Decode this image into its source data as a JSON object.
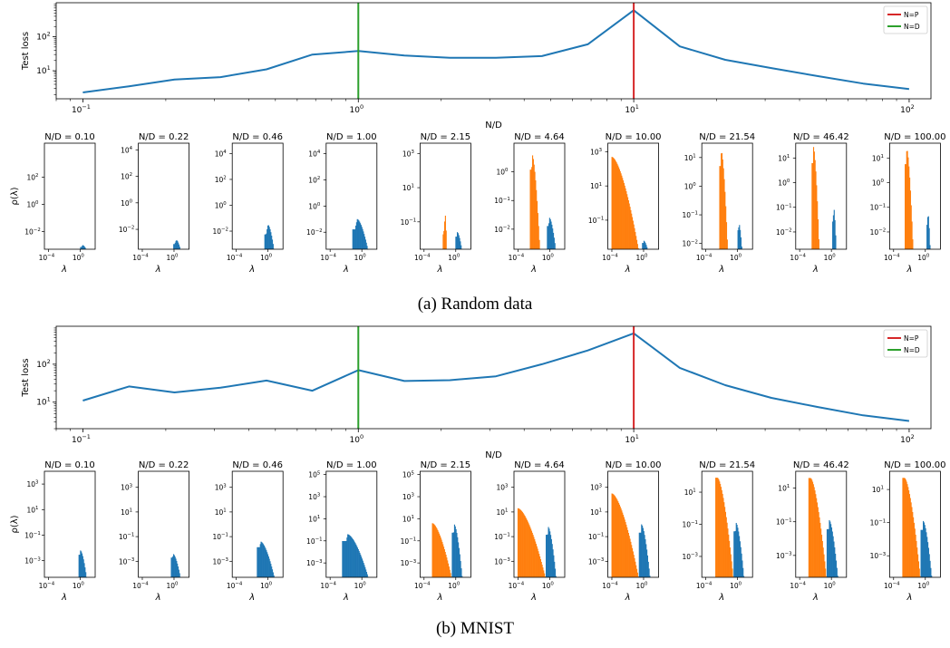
{
  "figure": {
    "caption_a": "(a) Random data",
    "caption_b": "(b) MNIST"
  },
  "colors": {
    "loss_line": "#1f77b4",
    "np_line": "#d62728",
    "nd_line": "#2ca02c",
    "hist_blue": "#1f77b4",
    "hist_orange": "#ff7f0e"
  },
  "chart_data": [
    {
      "type": "line",
      "panel": "a",
      "xlabel": "N/D",
      "ylabel": "Test loss",
      "x_scale": "log",
      "y_scale": "log",
      "xlim": [
        0.08,
        120
      ],
      "ylim": [
        1.5,
        1000
      ],
      "x_ticks": [
        {
          "v": 0.1,
          "base": "10",
          "exp": "−1"
        },
        {
          "v": 1,
          "base": "10",
          "exp": "0"
        },
        {
          "v": 10,
          "base": "10",
          "exp": "1"
        },
        {
          "v": 100,
          "base": "10",
          "exp": "2"
        }
      ],
      "y_ticks": [
        {
          "v": 10,
          "base": "10",
          "exp": "1"
        },
        {
          "v": 100,
          "base": "10",
          "exp": "2"
        }
      ],
      "x": [
        0.1,
        0.147,
        0.215,
        0.316,
        0.464,
        0.681,
        1.0,
        1.47,
        2.15,
        3.16,
        4.64,
        6.81,
        10.0,
        14.7,
        21.5,
        31.6,
        46.4,
        68.1,
        100.0
      ],
      "series": [
        {
          "values": [
            2.3,
            3.5,
            5.5,
            6.5,
            11,
            30,
            38,
            28,
            24,
            24,
            27,
            60,
            600,
            52,
            21,
            12,
            7,
            4.2,
            2.9
          ]
        }
      ],
      "vlines": [
        {
          "x": 10,
          "name": "N=P",
          "color": "#d62728"
        },
        {
          "x": 1,
          "name": "N=D",
          "color": "#2ca02c"
        }
      ],
      "legend": [
        "N=P",
        "N=D"
      ],
      "legend_position": "top-right",
      "grid": false
    },
    {
      "type": "histogram",
      "panel": "a",
      "xlabel": "λ",
      "ylabel": "ρ(λ)",
      "x_scale": "log",
      "y_scale": "log",
      "subplots": [
        {
          "title": "N/D = 0.10",
          "yrange": [
            -3.3,
            4.5
          ],
          "yticks": [
            -2,
            0,
            2
          ],
          "blue": {
            "a": 0.0,
            "b": 0.7,
            "peak": -3.0,
            "frac": 0.4,
            "floor": -3.3
          },
          "orange": null
        },
        {
          "title": "N/D = 0.22",
          "yrange": [
            -3.5,
            4.5
          ],
          "yticks": [
            -2,
            0,
            2,
            4
          ],
          "blue": {
            "a": -0.1,
            "b": 0.75,
            "peak": -2.8,
            "frac": 0.4,
            "floor": -3.5
          },
          "orange": null
        },
        {
          "title": "N/D = 0.46",
          "yrange": [
            -3.4,
            4.8
          ],
          "yticks": [
            -2,
            0,
            2,
            4
          ],
          "blue": {
            "a": -0.45,
            "b": 0.7,
            "peak": -1.5,
            "frac": 0.35,
            "floor": -3.4
          },
          "orange": null
        },
        {
          "title": "N/D = 1.00",
          "yrange": [
            -3.3,
            4.8
          ],
          "yticks": [
            -2,
            0,
            2,
            4
          ],
          "blue": {
            "a": -1.2,
            "b": 0.7,
            "peak": -1.0,
            "frac": 0.3,
            "floor": -3.3
          },
          "orange": null
        },
        {
          "title": "N/D = 2.15",
          "yrange": [
            -2.6,
            3.6
          ],
          "yticks": [
            -1,
            1,
            3
          ],
          "blue": {
            "a": -0.05,
            "b": 0.7,
            "peak": -1.6,
            "frac": 0.25,
            "floor": -2.6
          },
          "orange": {
            "a": -1.65,
            "b": -1.2,
            "peak": -0.6,
            "frac": 0.6,
            "floor": -2.6
          }
        },
        {
          "title": "N/D = 4.64",
          "yrange": [
            -2.7,
            1.0
          ],
          "yticks": [
            -2,
            -1,
            0
          ],
          "blue": {
            "a": -0.35,
            "b": 0.7,
            "peak": -1.6,
            "frac": 0.25,
            "floor": -2.7
          },
          "orange": {
            "a": -2.5,
            "b": -1.3,
            "peak": 0.6,
            "frac": 0.2,
            "floor": -2.7
          }
        },
        {
          "title": "N/D = 10.00",
          "yrange": [
            -2.7,
            3.5
          ],
          "yticks": [
            -1,
            1,
            3
          ],
          "blue": {
            "a": -0.2,
            "b": 0.45,
            "peak": -2.2,
            "frac": 0.25,
            "floor": -2.7
          },
          "orange": {
            "a": -4.05,
            "b": -0.7,
            "peak": 2.7,
            "frac": 0.0,
            "floor": -2.7
          }
        },
        {
          "title": "N/D = 21.54",
          "yrange": [
            -2.2,
            1.5
          ],
          "yticks": [
            -2,
            -1,
            0,
            1
          ],
          "blue": {
            "a": 0.0,
            "b": 0.5,
            "peak": -1.3,
            "frac": 0.25,
            "floor": -2.2
          },
          "orange": {
            "a": -2.3,
            "b": -1.3,
            "peak": 1.25,
            "frac": 0.2,
            "floor": -2.2
          }
        },
        {
          "title": "N/D = 46.42",
          "yrange": [
            -2.7,
            1.6
          ],
          "yticks": [
            -2,
            -1,
            0,
            1
          ],
          "blue": {
            "a": 0.1,
            "b": 0.55,
            "peak": -1.0,
            "frac": 0.3,
            "floor": -2.7
          },
          "orange": {
            "a": -2.5,
            "b": -1.6,
            "peak": 1.45,
            "frac": 0.2,
            "floor": -2.7
          }
        },
        {
          "title": "N/D = 100.00",
          "yrange": [
            -2.7,
            1.6
          ],
          "yticks": [
            -2,
            -1,
            0,
            1
          ],
          "blue": {
            "a": 0.15,
            "b": 0.55,
            "peak": -1.2,
            "frac": 0.3,
            "floor": -2.7
          },
          "orange": {
            "a": -2.6,
            "b": -1.6,
            "peak": 1.4,
            "frac": 0.2,
            "floor": -2.7
          }
        }
      ]
    },
    {
      "type": "line",
      "panel": "b",
      "xlabel": "N/D",
      "ylabel": "Test loss",
      "x_scale": "log",
      "y_scale": "log",
      "xlim": [
        0.08,
        120
      ],
      "ylim": [
        2,
        1000
      ],
      "x_ticks": [
        {
          "v": 0.1,
          "base": "10",
          "exp": "−1"
        },
        {
          "v": 1,
          "base": "10",
          "exp": "0"
        },
        {
          "v": 10,
          "base": "10",
          "exp": "1"
        },
        {
          "v": 100,
          "base": "10",
          "exp": "2"
        }
      ],
      "y_ticks": [
        {
          "v": 10,
          "base": "10",
          "exp": "1"
        },
        {
          "v": 100,
          "base": "10",
          "exp": "2"
        }
      ],
      "x": [
        0.1,
        0.147,
        0.215,
        0.316,
        0.464,
        0.681,
        1.0,
        1.47,
        2.15,
        3.16,
        4.64,
        6.81,
        10.0,
        14.7,
        21.5,
        31.6,
        46.4,
        68.1,
        100.0
      ],
      "series": [
        {
          "values": [
            11,
            26,
            18,
            24,
            37,
            20,
            70,
            36,
            38,
            48,
            100,
            230,
            650,
            80,
            28,
            13,
            7.5,
            4.5,
            3.2
          ]
        }
      ],
      "vlines": [
        {
          "x": 10,
          "name": "N=P",
          "color": "#d62728"
        },
        {
          "x": 1,
          "name": "N=D",
          "color": "#2ca02c"
        }
      ],
      "legend": [
        "N=P",
        "N=D"
      ],
      "legend_position": "top-right",
      "grid": false
    },
    {
      "type": "histogram",
      "panel": "b",
      "xlabel": "λ",
      "ylabel": "ρ(λ)",
      "x_scale": "log",
      "y_scale": "log",
      "subplots": [
        {
          "title": "N/D = 0.10",
          "yrange": [
            -4.3,
            4.0
          ],
          "yticks": [
            -3,
            -1,
            1,
            3
          ],
          "blue": {
            "a": -0.2,
            "b": 0.75,
            "peak": -2.2,
            "frac": 0.2,
            "floor": -4.3
          },
          "orange": null
        },
        {
          "title": "N/D = 0.22",
          "yrange": [
            -4.3,
            4.3
          ],
          "yticks": [
            -3,
            -1,
            1,
            3
          ],
          "blue": {
            "a": -0.4,
            "b": 0.75,
            "peak": -2.4,
            "frac": 0.2,
            "floor": -4.3
          },
          "orange": null
        },
        {
          "title": "N/D = 0.46",
          "yrange": [
            -4.3,
            4.3
          ],
          "yticks": [
            -3,
            -1,
            1,
            3
          ],
          "blue": {
            "a": -1.4,
            "b": 0.75,
            "peak": -1.4,
            "frac": 0.2,
            "floor": -4.3
          },
          "orange": null
        },
        {
          "title": "N/D = 1.00",
          "yrange": [
            -4.3,
            5.3
          ],
          "yticks": [
            -3,
            -1,
            1,
            3,
            5
          ],
          "blue": {
            "a": -2.5,
            "b": 0.75,
            "peak": -0.4,
            "frac": 0.2,
            "floor": -4.3
          },
          "orange": null
        },
        {
          "title": "N/D = 2.15",
          "yrange": [
            -4.3,
            5.3
          ],
          "yticks": [
            -3,
            -1,
            1,
            3,
            5
          ],
          "blue": {
            "a": -0.5,
            "b": 0.75,
            "peak": 0.5,
            "frac": 0.2,
            "floor": -4.3
          },
          "orange": {
            "a": -3.0,
            "b": -0.6,
            "peak": 0.6,
            "frac": 0.0,
            "floor": -4.3
          }
        },
        {
          "title": "N/D = 4.64",
          "yrange": [
            -4.3,
            4.3
          ],
          "yticks": [
            -3,
            -1,
            1,
            3
          ],
          "blue": {
            "a": -0.5,
            "b": 0.75,
            "peak": -0.2,
            "frac": 0.2,
            "floor": -4.3
          },
          "orange": {
            "a": -4.05,
            "b": -0.6,
            "peak": 1.3,
            "frac": 0.0,
            "floor": -4.3
          }
        },
        {
          "title": "N/D = 10.00",
          "yrange": [
            -4.3,
            4.3
          ],
          "yticks": [
            -3,
            -1,
            1,
            3
          ],
          "blue": {
            "a": -0.6,
            "b": 0.75,
            "peak": 0.0,
            "frac": 0.2,
            "floor": -4.3
          },
          "orange": {
            "a": -4.05,
            "b": -0.7,
            "peak": 2.5,
            "frac": 0.0,
            "floor": -4.3
          }
        },
        {
          "title": "N/D = 21.54",
          "yrange": [
            -4.3,
            2.3
          ],
          "yticks": [
            -3,
            -1,
            1
          ],
          "blue": {
            "a": -0.5,
            "b": 0.75,
            "peak": -0.9,
            "frac": 0.2,
            "floor": -4.3
          },
          "orange": {
            "a": -2.8,
            "b": -0.6,
            "peak": 1.9,
            "frac": 0.1,
            "floor": -4.3
          }
        },
        {
          "title": "N/D = 46.42",
          "yrange": [
            -4.3,
            2.0
          ],
          "yticks": [
            -3,
            -1,
            1
          ],
          "blue": {
            "a": -0.6,
            "b": 0.75,
            "peak": -0.9,
            "frac": 0.2,
            "floor": -4.3
          },
          "orange": {
            "a": -2.9,
            "b": -0.7,
            "peak": 1.6,
            "frac": 0.1,
            "floor": -4.3
          }
        },
        {
          "title": "N/D = 100.00",
          "yrange": [
            -4.3,
            2.1
          ],
          "yticks": [
            -3,
            -1,
            1
          ],
          "blue": {
            "a": -0.6,
            "b": 0.75,
            "peak": -0.9,
            "frac": 0.2,
            "floor": -4.3
          },
          "orange": {
            "a": -2.9,
            "b": -0.7,
            "peak": 1.7,
            "frac": 0.1,
            "floor": -4.3
          }
        }
      ]
    }
  ]
}
